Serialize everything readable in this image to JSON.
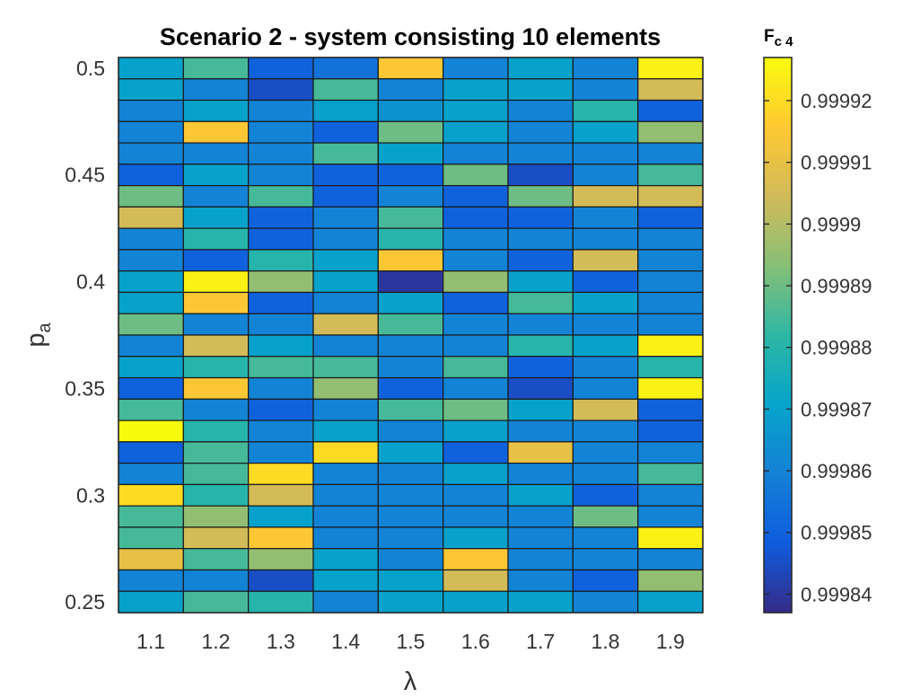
{
  "chart_data": {
    "type": "heatmap",
    "title": "Scenario 2 - system consisting 10 elements",
    "xlabel": "λ",
    "ylabel": "p_a",
    "x": [
      1.1,
      1.2,
      1.3,
      1.4,
      1.5,
      1.6,
      1.7,
      1.8,
      1.9
    ],
    "x_tick_labels": [
      "1.1",
      "1.2",
      "1.3",
      "1.4",
      "1.5",
      "1.6",
      "1.7",
      "1.8",
      "1.9"
    ],
    "y": [
      0.5,
      0.49,
      0.48,
      0.47,
      0.46,
      0.45,
      0.44,
      0.43,
      0.42,
      0.41,
      0.4,
      0.39,
      0.38,
      0.37,
      0.36,
      0.35,
      0.34,
      0.33,
      0.32,
      0.31,
      0.3,
      0.29,
      0.28,
      0.27,
      0.26,
      0.25
    ],
    "y_tick_labels": [
      "0.5",
      "0.45",
      "0.4",
      "0.35",
      "0.3",
      "0.25"
    ],
    "y_tick_values": [
      0.5,
      0.45,
      0.4,
      0.35,
      0.3,
      0.25
    ],
    "colorbar": {
      "label": "F",
      "label_subscript": "c 4",
      "tick_labels": [
        "0.99992",
        "0.99991",
        "0.9999",
        "0.99989",
        "0.99988",
        "0.99987",
        "0.99986",
        "0.99985",
        "0.99984"
      ],
      "tick_values": [
        0.99992,
        0.99991,
        0.9999,
        0.99989,
        0.99988,
        0.99987,
        0.99986,
        0.99985,
        0.99984
      ],
      "range": [
        0.999837,
        0.999927
      ],
      "colormap": "parula"
    },
    "grid": false,
    "values": [
      [
        0.99987,
        0.999885,
        0.99985,
        0.999855,
        0.999915,
        0.99986,
        0.99987,
        0.99986,
        0.999925
      ],
      [
        0.99987,
        0.99986,
        0.999845,
        0.999885,
        0.99986,
        0.99987,
        0.99987,
        0.99986,
        0.999905
      ],
      [
        0.99986,
        0.99987,
        0.99986,
        0.99987,
        0.999865,
        0.99987,
        0.99986,
        0.99988,
        0.99985
      ],
      [
        0.99986,
        0.999915,
        0.99986,
        0.99985,
        0.99989,
        0.99987,
        0.99986,
        0.99987,
        0.999895
      ],
      [
        0.99986,
        0.99986,
        0.99986,
        0.999885,
        0.99987,
        0.99986,
        0.99986,
        0.99986,
        0.99986
      ],
      [
        0.99985,
        0.99987,
        0.99986,
        0.99985,
        0.99985,
        0.99989,
        0.999845,
        0.99986,
        0.999885
      ],
      [
        0.99989,
        0.99986,
        0.999885,
        0.99985,
        0.99986,
        0.99985,
        0.99989,
        0.999905,
        0.999905
      ],
      [
        0.999905,
        0.99987,
        0.99985,
        0.99986,
        0.999885,
        0.99985,
        0.99985,
        0.99986,
        0.99985
      ],
      [
        0.99986,
        0.99988,
        0.99985,
        0.99986,
        0.99988,
        0.99986,
        0.99986,
        0.99986,
        0.99986
      ],
      [
        0.99986,
        0.99985,
        0.99988,
        0.99987,
        0.999915,
        0.99986,
        0.99985,
        0.999905,
        0.99986
      ],
      [
        0.99987,
        0.999925,
        0.999895,
        0.99987,
        0.99984,
        0.999895,
        0.99987,
        0.99985,
        0.99986
      ],
      [
        0.99987,
        0.999915,
        0.99985,
        0.99986,
        0.99987,
        0.99985,
        0.999885,
        0.99987,
        0.99986
      ],
      [
        0.99989,
        0.99986,
        0.99986,
        0.999905,
        0.999885,
        0.99986,
        0.99986,
        0.99986,
        0.99986
      ],
      [
        0.99986,
        0.999905,
        0.99987,
        0.99986,
        0.99986,
        0.99986,
        0.99988,
        0.99987,
        0.999925
      ],
      [
        0.99987,
        0.99988,
        0.999885,
        0.999885,
        0.99986,
        0.999885,
        0.99985,
        0.99986,
        0.99988
      ],
      [
        0.99985,
        0.999915,
        0.99986,
        0.999895,
        0.99985,
        0.99986,
        0.999845,
        0.99986,
        0.999925
      ],
      [
        0.999885,
        0.99986,
        0.99985,
        0.99986,
        0.999885,
        0.99989,
        0.99987,
        0.999905,
        0.99985
      ],
      [
        0.999927,
        0.99988,
        0.99986,
        0.99987,
        0.99986,
        0.99987,
        0.99986,
        0.99986,
        0.99985
      ],
      [
        0.99985,
        0.999885,
        0.99986,
        0.99992,
        0.99987,
        0.99985,
        0.99991,
        0.99986,
        0.99986
      ],
      [
        0.99986,
        0.999885,
        0.99992,
        0.99986,
        0.99986,
        0.99987,
        0.99986,
        0.99986,
        0.999885
      ],
      [
        0.99992,
        0.99988,
        0.999905,
        0.99986,
        0.99986,
        0.99986,
        0.99987,
        0.99985,
        0.99986
      ],
      [
        0.999885,
        0.999895,
        0.99987,
        0.99986,
        0.99986,
        0.99986,
        0.99986,
        0.99989,
        0.99986
      ],
      [
        0.999885,
        0.999905,
        0.999915,
        0.99986,
        0.99986,
        0.99987,
        0.99986,
        0.99986,
        0.999925
      ],
      [
        0.99991,
        0.999885,
        0.999895,
        0.99987,
        0.99986,
        0.999915,
        0.99986,
        0.99986,
        0.99986
      ],
      [
        0.99986,
        0.99986,
        0.999845,
        0.99987,
        0.99987,
        0.999905,
        0.99986,
        0.99985,
        0.999895
      ],
      [
        0.99987,
        0.999885,
        0.99988,
        0.99986,
        0.99987,
        0.99987,
        0.99987,
        0.99986,
        0.99987
      ]
    ]
  }
}
